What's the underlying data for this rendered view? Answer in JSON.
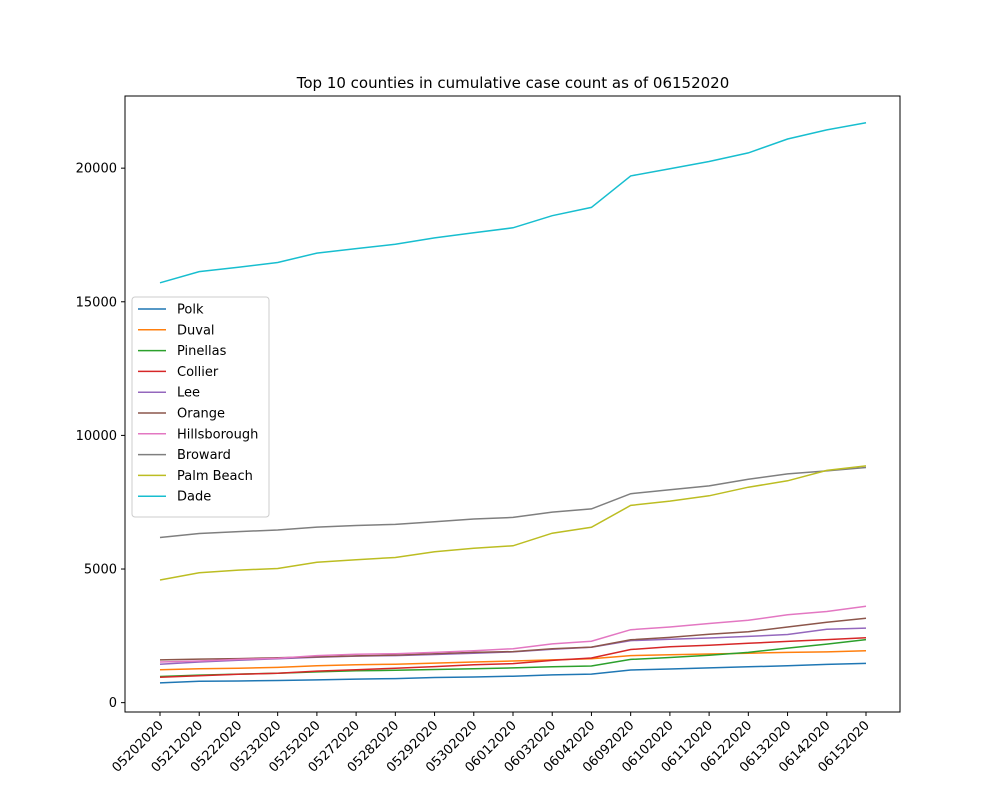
{
  "chart_data": {
    "type": "line",
    "title": "Top 10 counties in cumulative case count as of 06152020",
    "xlabel": "",
    "ylabel": "",
    "x": [
      "05202020",
      "05212020",
      "05222020",
      "05232020",
      "05252020",
      "05272020",
      "05282020",
      "05292020",
      "05302020",
      "06012020",
      "06032020",
      "06042020",
      "06092020",
      "06102020",
      "06112020",
      "06122020",
      "06132020",
      "06142020",
      "06152020"
    ],
    "ylim": [
      -350,
      22700
    ],
    "yticks": [
      0,
      5000,
      10000,
      15000,
      20000
    ],
    "grid": false,
    "legend_position": "center-left",
    "series": [
      {
        "name": "Polk",
        "color": "#1f77b4",
        "values": [
          740,
          800,
          810,
          830,
          850,
          880,
          900,
          940,
          960,
          990,
          1040,
          1070,
          1220,
          1260,
          1300,
          1340,
          1380,
          1430,
          1470
        ]
      },
      {
        "name": "Duval",
        "color": "#ff7f0e",
        "values": [
          1230,
          1270,
          1290,
          1320,
          1380,
          1420,
          1440,
          1480,
          1520,
          1560,
          1600,
          1640,
          1760,
          1790,
          1820,
          1850,
          1880,
          1900,
          1940
        ]
      },
      {
        "name": "Pinellas",
        "color": "#2ca02c",
        "values": [
          980,
          1030,
          1070,
          1100,
          1150,
          1190,
          1210,
          1240,
          1270,
          1300,
          1340,
          1370,
          1620,
          1690,
          1770,
          1880,
          2040,
          2190,
          2360
        ]
      },
      {
        "name": "Collier",
        "color": "#d62728",
        "values": [
          950,
          1010,
          1060,
          1100,
          1180,
          1230,
          1290,
          1350,
          1420,
          1460,
          1580,
          1670,
          1990,
          2090,
          2150,
          2220,
          2290,
          2360,
          2430
        ]
      },
      {
        "name": "Lee",
        "color": "#9467bd",
        "values": [
          1440,
          1520,
          1590,
          1640,
          1700,
          1740,
          1760,
          1800,
          1850,
          1900,
          2000,
          2070,
          2320,
          2370,
          2420,
          2480,
          2550,
          2750,
          2790
        ]
      },
      {
        "name": "Orange",
        "color": "#8c564b",
        "values": [
          1600,
          1630,
          1650,
          1680,
          1710,
          1750,
          1780,
          1830,
          1880,
          1910,
          2020,
          2080,
          2350,
          2440,
          2560,
          2650,
          2830,
          3010,
          3160
        ]
      },
      {
        "name": "Hillsborough",
        "color": "#e377c2",
        "values": [
          1520,
          1560,
          1620,
          1660,
          1760,
          1810,
          1830,
          1880,
          1940,
          2020,
          2200,
          2300,
          2730,
          2830,
          2960,
          3080,
          3290,
          3410,
          3610
        ]
      },
      {
        "name": "Broward",
        "color": "#7f7f7f",
        "values": [
          6180,
          6330,
          6400,
          6460,
          6570,
          6630,
          6670,
          6770,
          6870,
          6930,
          7130,
          7250,
          7820,
          7970,
          8110,
          8360,
          8560,
          8670,
          8800
        ]
      },
      {
        "name": "Palm Beach",
        "color": "#bcbd22",
        "values": [
          4590,
          4860,
          4960,
          5020,
          5250,
          5350,
          5430,
          5650,
          5780,
          5870,
          6340,
          6560,
          7380,
          7540,
          7740,
          8060,
          8300,
          8690,
          8860
        ]
      },
      {
        "name": "Dade",
        "color": "#17becf",
        "values": [
          15710,
          16130,
          16290,
          16470,
          16820,
          16990,
          17150,
          17390,
          17580,
          17770,
          18220,
          18530,
          19710,
          19980,
          20250,
          20570,
          21090,
          21430,
          21700
        ]
      }
    ]
  }
}
